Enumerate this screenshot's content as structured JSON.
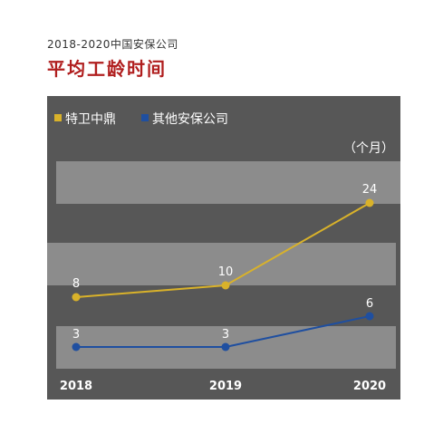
{
  "header": {
    "subtitle": "2018-2020中国安保公司",
    "title": "平均工龄时间"
  },
  "colors": {
    "panel_bg": "#575757",
    "band": "#8c8c8c",
    "series_1": "#d9b22a",
    "series_2": "#1f4fa0",
    "text": "#ffffff"
  },
  "chart_data": {
    "type": "line",
    "unit_label": "（个月）",
    "categories": [
      "2018",
      "2019",
      "2020"
    ],
    "series": [
      {
        "name": "特卫中鼎",
        "values": [
          8,
          10,
          24
        ],
        "labels": [
          "8",
          "10",
          "24"
        ]
      },
      {
        "name": "其他安保公司",
        "values": [
          3,
          3,
          6
        ],
        "labels": [
          "3",
          "3",
          "6"
        ]
      }
    ],
    "legend": "top-left",
    "grid": false
  }
}
